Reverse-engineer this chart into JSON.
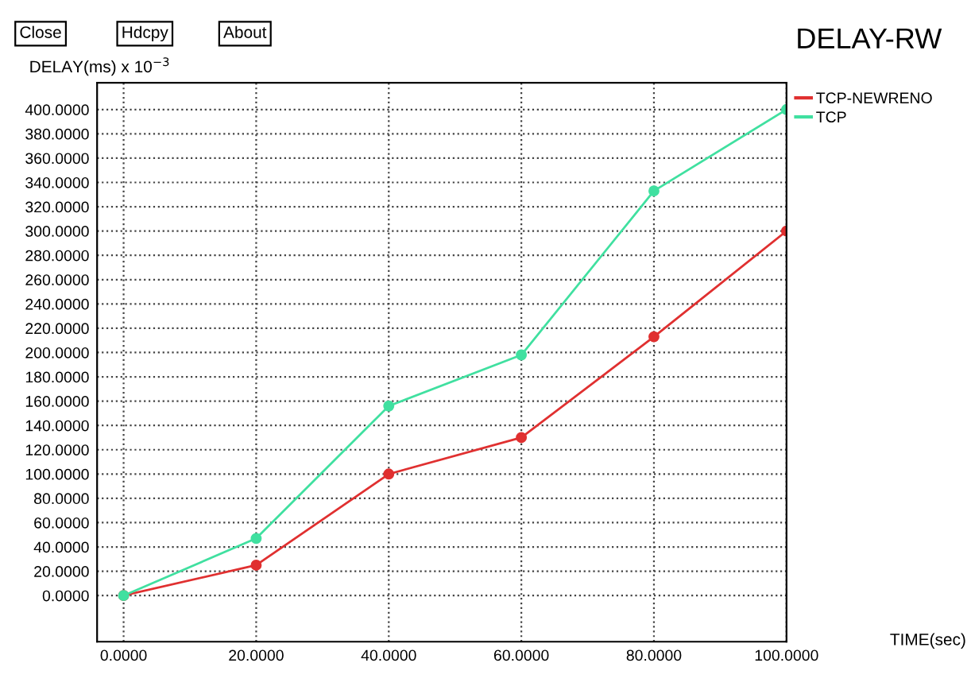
{
  "chart_data": {
    "type": "line",
    "title": "DELAY-RW",
    "ylabel": "DELAY(ms) x 10$^{−3}$",
    "xlabel": "TIME(sec)",
    "annotations": [
      "Close",
      "Hdcpy",
      "About"
    ],
    "x": [
      0,
      20,
      40,
      60,
      80,
      100
    ],
    "series": [
      {
        "name": "TCP-NEWRENO",
        "color": "#e03030",
        "values": [
          0,
          25,
          100,
          130,
          213,
          300
        ]
      },
      {
        "name": "TCP",
        "color": "#40e0a0",
        "values": [
          0,
          47,
          156,
          198,
          333,
          400
        ]
      }
    ],
    "xlim": [
      -4,
      100
    ],
    "ylim": [
      -38,
      422
    ],
    "xticks": [
      {
        "value": 0,
        "label": "0.0000"
      },
      {
        "value": 20,
        "label": "20.0000"
      },
      {
        "value": 40,
        "label": "40.0000"
      },
      {
        "value": 60,
        "label": "60.0000"
      },
      {
        "value": 80,
        "label": "80.0000"
      },
      {
        "value": 100,
        "label": "100.0000"
      }
    ],
    "yticks": [
      {
        "value": 0,
        "label": "0.0000"
      },
      {
        "value": 20,
        "label": "20.0000"
      },
      {
        "value": 40,
        "label": "40.0000"
      },
      {
        "value": 60,
        "label": "60.0000"
      },
      {
        "value": 80,
        "label": "80.0000"
      },
      {
        "value": 100,
        "label": "100.0000"
      },
      {
        "value": 120,
        "label": "120.0000"
      },
      {
        "value": 140,
        "label": "140.0000"
      },
      {
        "value": 160,
        "label": "160.0000"
      },
      {
        "value": 180,
        "label": "180.0000"
      },
      {
        "value": 200,
        "label": "200.0000"
      },
      {
        "value": 220,
        "label": "220.0000"
      },
      {
        "value": 240,
        "label": "240.0000"
      },
      {
        "value": 260,
        "label": "260.0000"
      },
      {
        "value": 280,
        "label": "280.0000"
      },
      {
        "value": 300,
        "label": "300.0000"
      },
      {
        "value": 320,
        "label": "320.0000"
      },
      {
        "value": 340,
        "label": "340.0000"
      },
      {
        "value": 360,
        "label": "360.0000"
      },
      {
        "value": 380,
        "label": "380.0000"
      },
      {
        "value": 400,
        "label": "400.0000"
      }
    ],
    "grid": true,
    "legend": "right",
    "marker": "circle",
    "line_style": "solid"
  }
}
